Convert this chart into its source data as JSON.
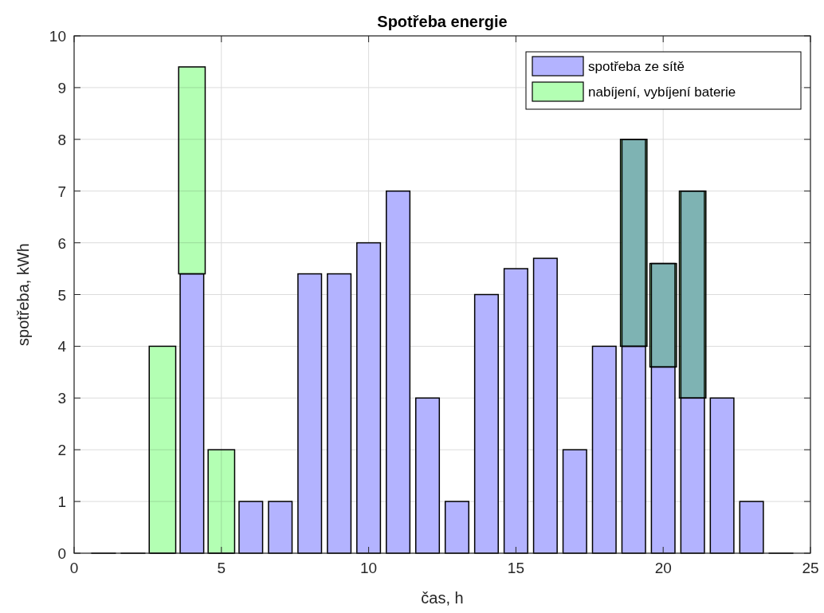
{
  "chart_data": {
    "type": "bar",
    "title": "Spotřeba energie",
    "xlabel": "čas, h",
    "ylabel": "spotřeba, kWh",
    "x": [
      1,
      2,
      3,
      4,
      5,
      6,
      7,
      8,
      9,
      10,
      11,
      12,
      13,
      14,
      15,
      16,
      17,
      18,
      19,
      20,
      21,
      22,
      23,
      24
    ],
    "series": [
      {
        "name": "spotřeba ze sítě",
        "color": "#b3b3ff",
        "values": [
          0,
          0,
          0,
          5.4,
          0,
          1,
          1,
          5.4,
          5.4,
          6,
          7,
          3,
          1,
          5,
          5.5,
          5.7,
          2,
          4,
          4,
          3.6,
          3,
          3,
          1,
          0
        ]
      },
      {
        "color": "#b3b3ff",
        "base": [
          null,
          null,
          null,
          null,
          null,
          null,
          null,
          null,
          null,
          null,
          null,
          null,
          null,
          null,
          null,
          null,
          null,
          null,
          4,
          3.6,
          3,
          null,
          null,
          null
        ],
        "values": [
          null,
          null,
          null,
          null,
          null,
          null,
          null,
          null,
          null,
          null,
          null,
          null,
          null,
          null,
          null,
          null,
          null,
          null,
          4,
          2,
          4,
          null,
          null,
          null
        ]
      },
      {
        "name": "nabíjení, vybíjení baterie",
        "color": "#b3ffb3",
        "base": [
          null,
          null,
          0,
          5.4,
          0,
          null,
          null,
          null,
          null,
          null,
          null,
          null,
          null,
          null,
          null,
          null,
          null,
          null,
          4,
          3.6,
          3,
          null,
          null,
          null
        ],
        "values": [
          null,
          null,
          4,
          4,
          2,
          null,
          null,
          null,
          null,
          null,
          null,
          null,
          null,
          null,
          null,
          null,
          null,
          null,
          4,
          2,
          4,
          null,
          null,
          null
        ]
      }
    ],
    "xlim": [
      0,
      25
    ],
    "xticks": [
      0,
      5,
      10,
      15,
      20,
      25
    ],
    "ylim": [
      0,
      10
    ],
    "yticks": [
      0,
      1,
      2,
      3,
      4,
      5,
      6,
      7,
      8,
      9,
      10
    ],
    "grid": true,
    "legend": "top right"
  }
}
